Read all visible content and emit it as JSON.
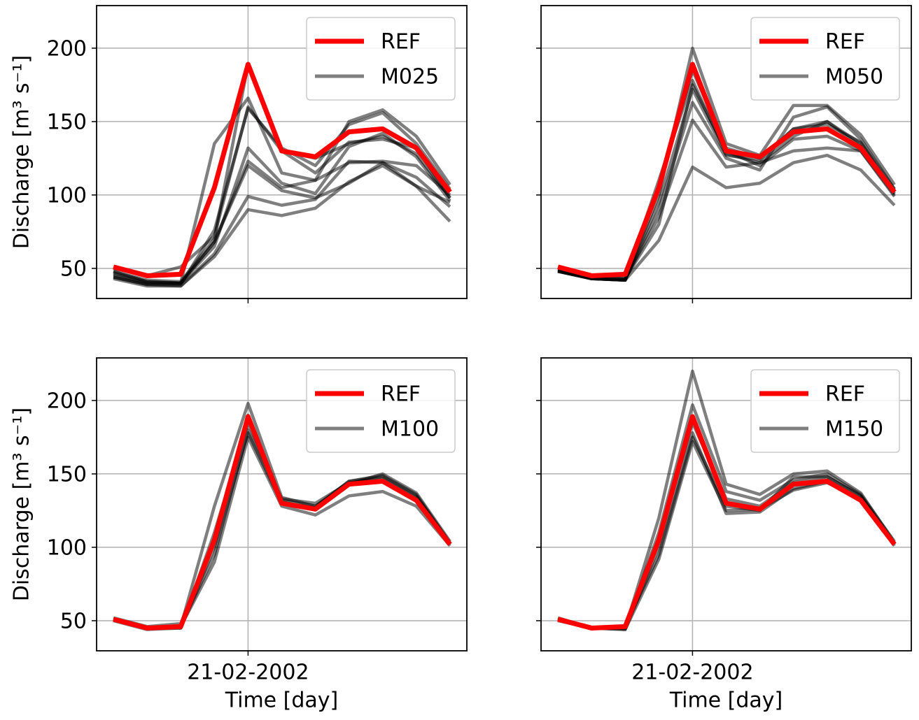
{
  "chart_data": [
    {
      "type": "line",
      "ylabel": "Discharge [m³ s⁻¹]",
      "categories": [
        null,
        null,
        null,
        null,
        "21-02-2002",
        null,
        null,
        null,
        null,
        null,
        null
      ],
      "show_xticklabels": false,
      "show_yticklabels": true,
      "ylim": [
        29.5,
        229
      ],
      "yticks": [
        50,
        100,
        150,
        200
      ],
      "grid": true,
      "legend": "upper right",
      "series": [
        {
          "name": "REF",
          "color": "#ff0000",
          "values": [
            51,
            45,
            46,
            105,
            189,
            130,
            126,
            143,
            145,
            132,
            102
          ]
        }
      ],
      "ensemble": {
        "name": "M025",
        "color": "#000000",
        "alpha": 0.5,
        "members": [
          [
            48,
            42,
            41,
            70,
            189,
            130,
            125,
            135,
            140,
            128,
            98
          ],
          [
            46,
            40,
            40,
            135,
            166,
            115,
            110,
            150,
            158,
            140,
            107
          ],
          [
            44,
            39,
            39,
            76,
            159,
            132,
            120,
            148,
            156,
            135,
            104
          ],
          [
            48,
            41,
            40,
            65,
            132,
            108,
            101,
            133,
            142,
            126,
            96
          ],
          [
            47,
            41,
            40,
            68,
            123,
            105,
            110,
            122,
            123,
            120,
            100
          ],
          [
            45,
            40,
            40,
            68,
            120,
            103,
            98,
            108,
            122,
            112,
            92
          ],
          [
            44,
            39,
            38,
            60,
            99,
            93,
            97,
            123,
            122,
            106,
            82
          ],
          [
            43,
            38,
            38,
            58,
            90,
            86,
            91,
            109,
            120,
            106,
            95
          ],
          [
            50,
            45,
            51,
            72,
            160,
            130,
            115,
            136,
            138,
            132,
            98
          ]
        ]
      }
    },
    {
      "type": "line",
      "categories": [
        null,
        null,
        null,
        null,
        "21-02-2002",
        null,
        null,
        null,
        null,
        null,
        null
      ],
      "show_xticklabels": false,
      "show_yticklabels": false,
      "ylim": [
        29.5,
        229
      ],
      "yticks": [
        50,
        100,
        150,
        200
      ],
      "grid": true,
      "legend": "upper right",
      "series": [
        {
          "name": "REF",
          "color": "#ff0000",
          "values": [
            51,
            45,
            46,
            105,
            189,
            130,
            126,
            143,
            145,
            132,
            102
          ]
        }
      ],
      "ensemble": {
        "name": "M050",
        "color": "#000000",
        "alpha": 0.5,
        "members": [
          [
            48,
            43,
            42,
            69,
            119,
            105,
            108,
            122,
            127,
            117,
            93
          ],
          [
            49,
            43,
            43,
            85,
            151,
            119,
            122,
            130,
            132,
            130,
            99
          ],
          [
            48,
            43,
            42,
            100,
            200,
            135,
            127,
            161,
            161,
            141,
            107
          ],
          [
            48,
            43,
            42,
            90,
            163,
            125,
            117,
            153,
            160,
            138,
            104
          ],
          [
            49,
            44,
            43,
            110,
            178,
            128,
            122,
            140,
            150,
            133,
            102
          ],
          [
            49,
            43,
            42,
            95,
            172,
            127,
            124,
            145,
            150,
            135,
            101
          ],
          [
            48,
            43,
            42,
            105,
            185,
            132,
            125,
            145,
            148,
            136,
            104
          ],
          [
            49,
            44,
            43,
            80,
            175,
            130,
            120,
            138,
            140,
            130,
            100
          ]
        ]
      }
    },
    {
      "type": "line",
      "ylabel": "Discharge [m³ s⁻¹]",
      "xlabel": "Time [day]",
      "categories": [
        null,
        null,
        null,
        null,
        "21-02-2002",
        null,
        null,
        null,
        null,
        null,
        null
      ],
      "show_xticklabels": true,
      "show_yticklabels": true,
      "ylim": [
        29.5,
        229
      ],
      "yticks": [
        50,
        100,
        150,
        200
      ],
      "grid": true,
      "legend": "upper right",
      "series": [
        {
          "name": "REF",
          "color": "#ff0000",
          "values": [
            51,
            45,
            46,
            105,
            189,
            130,
            126,
            143,
            145,
            132,
            102
          ]
        }
      ],
      "ensemble": {
        "name": "M100",
        "color": "#000000",
        "alpha": 0.5,
        "members": [
          [
            51,
            45,
            46,
            128,
            198,
            134,
            128,
            145,
            148,
            135,
            103
          ],
          [
            51,
            45,
            46,
            90,
            175,
            128,
            122,
            135,
            138,
            128,
            101
          ],
          [
            51,
            45,
            45,
            100,
            178,
            130,
            127,
            145,
            149,
            136,
            103
          ],
          [
            51,
            45,
            46,
            95,
            180,
            133,
            130,
            144,
            147,
            134,
            102
          ],
          [
            50,
            44,
            45,
            110,
            185,
            131,
            126,
            143,
            150,
            137,
            104
          ],
          [
            52,
            46,
            48,
            105,
            190,
            132,
            128,
            143,
            145,
            132,
            102
          ]
        ]
      }
    },
    {
      "type": "line",
      "xlabel": "Time [day]",
      "categories": [
        null,
        null,
        null,
        null,
        "21-02-2002",
        null,
        null,
        null,
        null,
        null,
        null
      ],
      "show_xticklabels": true,
      "show_yticklabels": false,
      "ylim": [
        29.5,
        229
      ],
      "yticks": [
        50,
        100,
        150,
        200
      ],
      "grid": true,
      "legend": "upper right",
      "series": [
        {
          "name": "REF",
          "color": "#ff0000",
          "values": [
            51,
            45,
            46,
            105,
            189,
            130,
            126,
            143,
            145,
            132,
            102
          ]
        }
      ],
      "ensemble": {
        "name": "M150",
        "color": "#000000",
        "alpha": 0.5,
        "members": [
          [
            51,
            45,
            45,
            120,
            220,
            143,
            136,
            150,
            152,
            137,
            103
          ],
          [
            51,
            45,
            44,
            100,
            178,
            123,
            124,
            140,
            145,
            132,
            102
          ],
          [
            52,
            45,
            46,
            95,
            175,
            128,
            125,
            148,
            148,
            135,
            103
          ],
          [
            51,
            45,
            45,
            110,
            197,
            138,
            132,
            146,
            150,
            136,
            104
          ],
          [
            51,
            45,
            45,
            105,
            185,
            133,
            128,
            144,
            148,
            135,
            102
          ],
          [
            50,
            45,
            44,
            92,
            172,
            125,
            126,
            139,
            144,
            133,
            101
          ]
        ]
      }
    }
  ]
}
